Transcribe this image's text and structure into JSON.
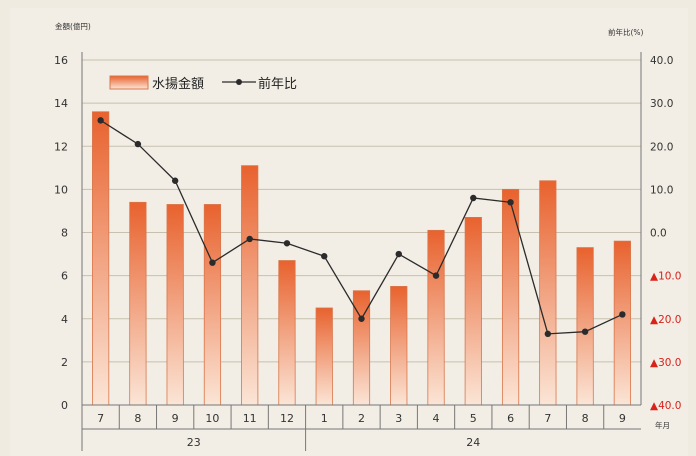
{
  "chart_data": {
    "type": "bar",
    "left_axis_title": "金額(億円)",
    "right_axis_title": "前年比(%)",
    "x_axis_title": "年月",
    "categories": [
      "7",
      "8",
      "9",
      "10",
      "11",
      "12",
      "1",
      "2",
      "3",
      "4",
      "5",
      "6",
      "7",
      "8",
      "9"
    ],
    "year_groups": [
      {
        "label": "23",
        "start": 0,
        "end": 5
      },
      {
        "label": "24",
        "start": 6,
        "end": 14
      }
    ],
    "series": [
      {
        "name": "水揚金額",
        "kind": "bar",
        "axis": "left",
        "values": [
          13.6,
          9.4,
          9.3,
          9.3,
          11.1,
          6.7,
          4.5,
          5.3,
          5.5,
          8.1,
          8.7,
          10.0,
          10.4,
          7.3,
          7.6
        ]
      },
      {
        "name": "前年比",
        "kind": "line",
        "axis": "right",
        "values": [
          26.0,
          20.5,
          12.0,
          -7.0,
          -1.5,
          -2.5,
          -5.5,
          -20.0,
          -5.0,
          -10.0,
          8.0,
          7.0,
          -23.5,
          -23.0,
          -19.0
        ]
      }
    ],
    "left_axis": {
      "min": 0,
      "max": 16,
      "ticks": [
        "0",
        "2",
        "4",
        "6",
        "8",
        "10",
        "12",
        "14",
        "16"
      ]
    },
    "right_axis": {
      "min": -40,
      "max": 40,
      "ticks": [
        "▲40.0",
        "▲30.0",
        "▲20.0",
        "▲10.0",
        "0.0",
        "10.0",
        "20.0",
        "30.0",
        "40.0"
      ]
    },
    "grid": true,
    "legend_position": "top-left",
    "colors": {
      "bar_top": "#e8622e",
      "bar_bottom": "#fbe5d6",
      "bar_border": "#d9764a",
      "line": "#2b2b2b",
      "grid": "#c8c0ae",
      "frame": "#777777",
      "negative_tick": "#d8231b",
      "tick": "#333333"
    }
  }
}
